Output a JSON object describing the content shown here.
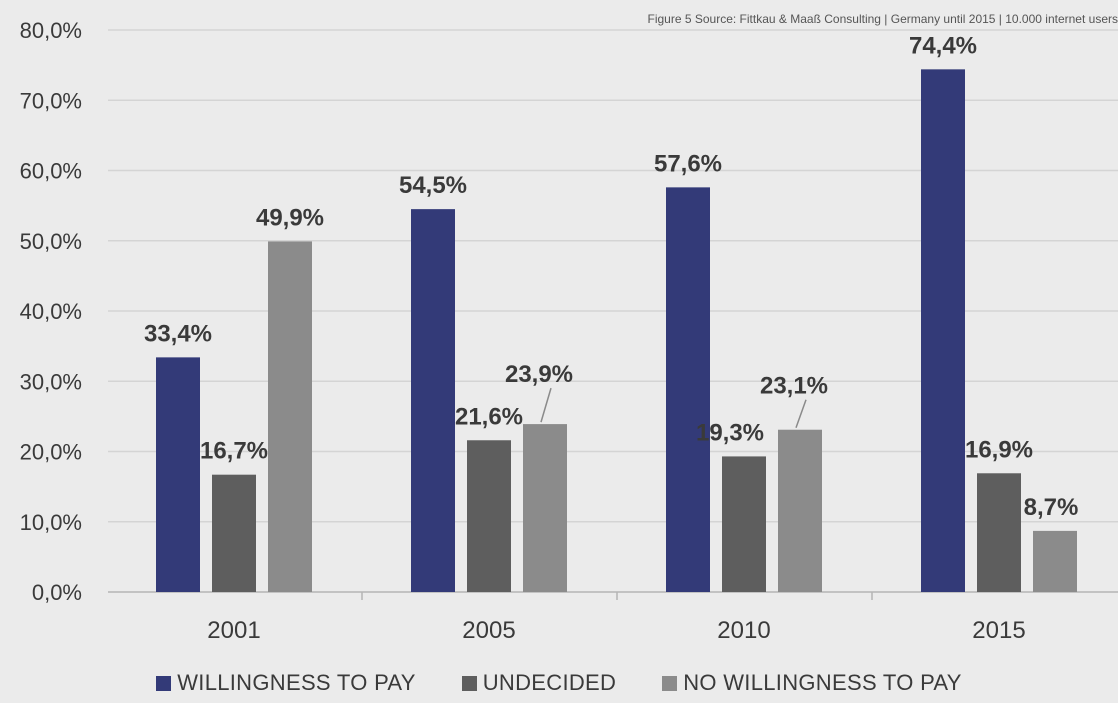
{
  "source_note": "Figure 5 Source: Fittkau & Maaß Consulting | Germany until 2015 | 10.000 internet users",
  "chart_data": {
    "type": "bar",
    "title": "",
    "xlabel": "",
    "ylabel": "",
    "categories": [
      "2001",
      "2005",
      "2010",
      "2015"
    ],
    "ylim": [
      0,
      80
    ],
    "yticks": [
      "0,0%",
      "10,0%",
      "20,0%",
      "30,0%",
      "40,0%",
      "50,0%",
      "60,0%",
      "70,0%",
      "80,0%"
    ],
    "grid": true,
    "legend_position": "bottom",
    "series": [
      {
        "name": "WILLINGNESS TO PAY",
        "color": "#333a78",
        "values": [
          33.4,
          54.5,
          57.6,
          74.4
        ],
        "labels": [
          "33,4%",
          "54,5%",
          "57,6%",
          "74,4%"
        ]
      },
      {
        "name": "UNDECIDED",
        "color": "#5e5e5e",
        "values": [
          16.7,
          21.6,
          19.3,
          16.9
        ],
        "labels": [
          "16,7%",
          "21,6%",
          "19,3%",
          "16,9%"
        ]
      },
      {
        "name": "NO WILLINGNESS TO PAY",
        "color": "#8b8b8b",
        "values": [
          49.9,
          23.9,
          23.1,
          8.7
        ],
        "labels": [
          "49,9%",
          "23,9%",
          "23,1%",
          "8,7%"
        ]
      }
    ]
  }
}
